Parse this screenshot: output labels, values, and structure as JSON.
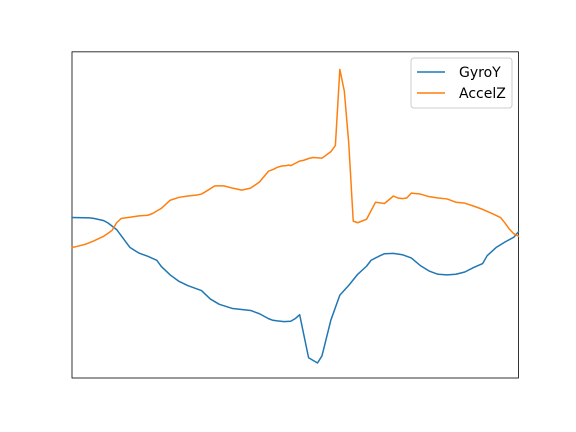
{
  "chart_data": {
    "type": "line",
    "title": "",
    "xlabel": "",
    "ylabel": "",
    "axes_visible": false,
    "grid": false,
    "legend": {
      "position": "top-right"
    },
    "xlim": [
      0,
      100
    ],
    "ylim": [
      0,
      100
    ],
    "series": [
      {
        "name": "GyroY",
        "color": "#1f77b4",
        "x": [
          0,
          4,
          5,
          7,
          8,
          10,
          13,
          15,
          17,
          19,
          20,
          22,
          24,
          26,
          29,
          31,
          33,
          36,
          38,
          40,
          42,
          44,
          45,
          46,
          47.5,
          49,
          50,
          51,
          53,
          55,
          56,
          58,
          60,
          62,
          64,
          66,
          67,
          69,
          70,
          72,
          74,
          76,
          78,
          80,
          82,
          84,
          86,
          88,
          90,
          92,
          93,
          95,
          97,
          99,
          100
        ],
        "y": [
          49.2,
          49.1,
          48.9,
          48.3,
          47.6,
          45.5,
          40.0,
          38.3,
          37.3,
          36.1,
          34.2,
          31.6,
          29.6,
          28.3,
          26.8,
          24.2,
          22.6,
          21.3,
          21.0,
          20.7,
          19.7,
          18.2,
          17.7,
          17.5,
          17.3,
          17.4,
          18.2,
          19.4,
          6.2,
          4.6,
          6.8,
          17.8,
          25.4,
          28.4,
          31.8,
          34.3,
          36.1,
          37.5,
          38.1,
          38.2,
          37.8,
          36.8,
          34.5,
          32.8,
          31.8,
          31.6,
          31.8,
          32.5,
          33.9,
          35.1,
          37.5,
          40.0,
          41.7,
          43.2,
          44.8
        ]
      },
      {
        "name": "AccelZ",
        "color": "#ff7f0e",
        "x": [
          0,
          1,
          3,
          5,
          7,
          8,
          9,
          10,
          11,
          13,
          15,
          17,
          18,
          20,
          22,
          24,
          26,
          28,
          29,
          30,
          32,
          34,
          36,
          38,
          40,
          42,
          44,
          45,
          46,
          47,
          48,
          48.5,
          49,
          50,
          51,
          52,
          53,
          54,
          56,
          58,
          59,
          60,
          61,
          62,
          63,
          64,
          66,
          68,
          70,
          72,
          73,
          74,
          75,
          76,
          78,
          80,
          82,
          84,
          86,
          88,
          90,
          92,
          94,
          96,
          97,
          98,
          99,
          100
        ],
        "y": [
          40.0,
          40.3,
          41.0,
          42.1,
          43.4,
          44.3,
          45.3,
          47.6,
          48.9,
          49.3,
          49.7,
          49.9,
          50.4,
          52.0,
          54.5,
          55.4,
          55.8,
          56.1,
          56.4,
          57.2,
          58.9,
          58.9,
          58.2,
          57.6,
          58.2,
          60.1,
          63.4,
          63.9,
          64.6,
          65.0,
          65.1,
          65.3,
          65.1,
          65.8,
          66.5,
          66.8,
          67.3,
          67.6,
          67.4,
          69.4,
          71.3,
          94.6,
          88.0,
          71.9,
          48.1,
          47.6,
          48.7,
          53.9,
          53.5,
          55.8,
          55.2,
          55.0,
          55.2,
          56.7,
          56.4,
          55.6,
          55.2,
          54.9,
          53.9,
          53.6,
          52.7,
          51.7,
          50.5,
          49.2,
          47.5,
          45.6,
          44.2,
          43.5
        ]
      }
    ]
  }
}
